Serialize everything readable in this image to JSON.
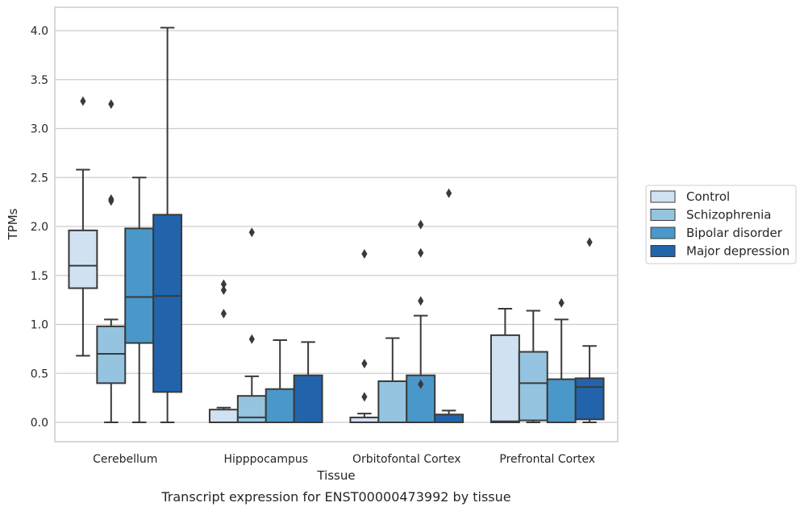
{
  "caption": "Transcript expression for ENST00000473992 by tissue",
  "chart_data": {
    "type": "box",
    "xlabel": "Tissue",
    "ylabel": "TPMs",
    "ylim": [
      -0.2,
      4.25
    ],
    "yticks": [
      "0.0",
      "0.5",
      "1.0",
      "1.5",
      "2.0",
      "2.5",
      "3.0",
      "3.5",
      "4.0"
    ],
    "ytick_values": [
      0,
      0.5,
      1.0,
      1.5,
      2.0,
      2.5,
      3.0,
      3.5,
      4.0
    ],
    "grid": true,
    "legend_position": "right",
    "categories": [
      "Cerebellum",
      "Hipppocampus",
      "Orbitofontal Cortex",
      "Prefrontal Cortex"
    ],
    "series": [
      {
        "name": "Control",
        "color": "#d0e1f2",
        "boxes": [
          {
            "min": 0.68,
            "q1": 1.37,
            "median": 1.6,
            "q3": 1.96,
            "max": 2.58,
            "outliers": [
              3.28
            ]
          },
          {
            "min": 0.0,
            "q1": 0.0,
            "median": 0.0,
            "q3": 0.13,
            "max": 0.15,
            "outliers": [
              1.41,
              1.35,
              1.11
            ]
          },
          {
            "min": 0.0,
            "q1": 0.0,
            "median": 0.0,
            "q3": 0.05,
            "max": 0.09,
            "outliers": [
              1.72,
              0.6,
              0.26
            ]
          },
          {
            "min": 0.0,
            "q1": 0.0,
            "median": 0.01,
            "q3": 0.89,
            "max": 1.16,
            "outliers": []
          }
        ]
      },
      {
        "name": "Schizophrenia",
        "color": "#94c4df",
        "boxes": [
          {
            "min": 0.0,
            "q1": 0.4,
            "median": 0.7,
            "q3": 0.98,
            "max": 1.05,
            "outliers": [
              3.25,
              2.28,
              2.26
            ]
          },
          {
            "min": 0.0,
            "q1": 0.0,
            "median": 0.05,
            "q3": 0.27,
            "max": 0.47,
            "outliers": [
              1.94,
              0.85
            ]
          },
          {
            "min": 0.0,
            "q1": 0.0,
            "median": 0.0,
            "q3": 0.42,
            "max": 0.86,
            "outliers": []
          },
          {
            "min": 0.0,
            "q1": 0.02,
            "median": 0.4,
            "q3": 0.72,
            "max": 1.14,
            "outliers": []
          }
        ]
      },
      {
        "name": "Bipolar disorder",
        "color": "#4a98c9",
        "boxes": [
          {
            "min": 0.0,
            "q1": 0.81,
            "median": 1.28,
            "q3": 1.98,
            "max": 2.5,
            "outliers": []
          },
          {
            "min": 0.0,
            "q1": 0.0,
            "median": 0.0,
            "q3": 0.34,
            "max": 0.84,
            "outliers": []
          },
          {
            "min": 0.0,
            "q1": 0.0,
            "median": 0.0,
            "q3": 0.48,
            "max": 1.09,
            "outliers": [
              2.02,
              1.73,
              1.24,
              0.39
            ]
          },
          {
            "min": 0.0,
            "q1": 0.0,
            "median": 0.0,
            "q3": 0.44,
            "max": 1.05,
            "outliers": [
              1.22
            ]
          }
        ]
      },
      {
        "name": "Major depression",
        "color": "#2164ab",
        "boxes": [
          {
            "min": 0.0,
            "q1": 0.31,
            "median": 1.29,
            "q3": 2.12,
            "max": 4.03,
            "outliers": []
          },
          {
            "min": 0.0,
            "q1": 0.0,
            "median": 0.0,
            "q3": 0.48,
            "max": 0.82,
            "outliers": []
          },
          {
            "min": 0.0,
            "q1": 0.0,
            "median": 0.0,
            "q3": 0.08,
            "max": 0.12,
            "outliers": [
              2.34
            ]
          },
          {
            "min": 0.0,
            "q1": 0.03,
            "median": 0.36,
            "q3": 0.45,
            "max": 0.78,
            "outliers": [
              1.84
            ]
          }
        ]
      }
    ]
  }
}
